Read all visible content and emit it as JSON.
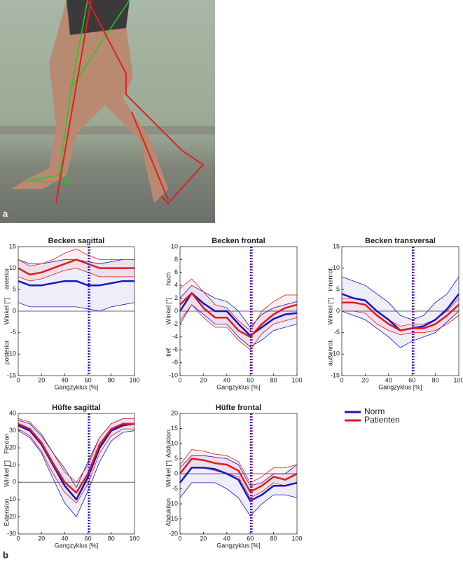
{
  "panel_labels": {
    "a": "a",
    "b": "b"
  },
  "chart_data": [
    {
      "type": "line",
      "title": "Becken sagittal",
      "xlabel": "Gangzyklus [%]",
      "ylabel": "Winkel [°]",
      "top_label": "anterior",
      "bottom_label": "posterior",
      "x": [
        0,
        10,
        20,
        30,
        40,
        50,
        60,
        70,
        80,
        90,
        100
      ],
      "xlim": [
        0,
        100
      ],
      "xticks": [
        0,
        20,
        40,
        60,
        80,
        100
      ],
      "ylim": [
        -15,
        15
      ],
      "yticks": [
        -15,
        -10,
        -5,
        0,
        5,
        10,
        15
      ],
      "zero_line": true,
      "series": [
        {
          "name": "Norm",
          "color": "#1414c8",
          "toe_off": 60.5,
          "values": [
            7,
            6,
            6,
            6.5,
            7,
            7,
            6,
            6,
            6.5,
            7,
            7
          ],
          "lower": [
            2,
            1,
            1,
            1,
            1,
            1,
            0.5,
            0,
            1,
            1.5,
            2
          ],
          "upper": [
            12,
            11,
            11,
            11.5,
            12,
            12,
            11.5,
            11,
            11.5,
            12,
            12
          ]
        },
        {
          "name": "Patienten",
          "color": "#e31a1a",
          "toe_off": 61.5,
          "values": [
            10,
            8.5,
            9,
            10,
            11,
            12,
            11,
            10,
            10,
            10,
            10
          ],
          "lower": [
            8,
            7,
            7.5,
            8.5,
            9.5,
            10,
            9,
            8,
            8,
            8,
            8
          ],
          "upper": [
            12,
            10.5,
            11,
            12,
            13.5,
            14.5,
            13,
            12,
            12,
            12,
            12
          ]
        }
      ]
    },
    {
      "type": "line",
      "title": "Becken frontal",
      "xlabel": "Gangzyklus [%]",
      "ylabel": "Winkel [°]",
      "top_label": "hoch",
      "bottom_label": "tief",
      "x": [
        0,
        10,
        20,
        30,
        40,
        50,
        60,
        70,
        80,
        90,
        100
      ],
      "xlim": [
        0,
        100
      ],
      "xticks": [
        0,
        20,
        40,
        60,
        80,
        100
      ],
      "ylim": [
        -10,
        10
      ],
      "yticks": [
        -10,
        -8,
        -6,
        -4,
        -2,
        0,
        2,
        4,
        6,
        8,
        10
      ],
      "zero_line": true,
      "series": [
        {
          "name": "Norm",
          "color": "#1414c8",
          "toe_off": 60.5,
          "values": [
            0,
            2.8,
            1.2,
            0,
            0,
            -2,
            -3.8,
            -2.5,
            -1.2,
            -0.5,
            -0.3
          ],
          "lower": [
            -2,
            1,
            -0.5,
            -2,
            -2,
            -4,
            -5.5,
            -4.5,
            -3,
            -2.5,
            -2
          ],
          "upper": [
            2,
            4,
            3,
            2,
            1.5,
            0,
            -2.5,
            -0.5,
            0.5,
            1,
            1.5
          ]
        },
        {
          "name": "Patienten",
          "color": "#e31a1a",
          "toe_off": 61.5,
          "values": [
            1,
            2.8,
            0.5,
            -1,
            -1,
            -3,
            -4,
            -2,
            -0.5,
            0.5,
            1
          ],
          "lower": [
            -1.5,
            1,
            -1,
            -2.5,
            -2.5,
            -4.5,
            -6,
            -3.5,
            -2,
            -1.5,
            -1
          ],
          "upper": [
            3.5,
            5,
            3,
            1,
            0.5,
            -1.5,
            -3,
            0,
            1.5,
            2.5,
            2.5
          ]
        }
      ]
    },
    {
      "type": "line",
      "title": "Becken transversal",
      "xlabel": "Gangzyklus [%]",
      "ylabel": "Winkel [°]",
      "top_label": "innenrot.",
      "bottom_label": "außenrot.",
      "x": [
        0,
        10,
        20,
        30,
        40,
        50,
        60,
        70,
        80,
        90,
        100
      ],
      "xlim": [
        0,
        100
      ],
      "xticks": [
        0,
        20,
        40,
        60,
        80,
        100
      ],
      "ylim": [
        -15,
        15
      ],
      "yticks": [
        -15,
        -10,
        -5,
        0,
        5,
        10,
        15
      ],
      "zero_line": true,
      "series": [
        {
          "name": "Norm",
          "color": "#1414c8",
          "toe_off": 60.5,
          "values": [
            4,
            3,
            2.5,
            0,
            -2,
            -4.5,
            -4,
            -3.5,
            -2,
            0.5,
            4
          ],
          "lower": [
            0,
            -1,
            -2,
            -4,
            -6,
            -8.5,
            -7,
            -6,
            -5,
            -2.5,
            0
          ],
          "upper": [
            8,
            7,
            6,
            4,
            2,
            -1,
            -2,
            -1,
            2,
            4,
            8
          ]
        },
        {
          "name": "Patienten",
          "color": "#e31a1a",
          "toe_off": 61.5,
          "values": [
            2,
            2,
            1.5,
            -1,
            -3,
            -4.5,
            -4,
            -4,
            -3,
            -1,
            1.5
          ],
          "lower": [
            0,
            0,
            -0.5,
            -3,
            -4.5,
            -5.5,
            -5,
            -5,
            -4.5,
            -3,
            -1
          ],
          "upper": [
            3,
            3,
            2.5,
            0,
            -2,
            -3.5,
            -3,
            -3,
            -2,
            0,
            3
          ]
        }
      ]
    },
    {
      "type": "line",
      "title": "Hüfte sagittal",
      "xlabel": "Gangzyklus [%]",
      "ylabel": "Winkel [°]",
      "top_label": "Flexion",
      "bottom_label": "Extension",
      "x": [
        0,
        10,
        20,
        30,
        40,
        50,
        60,
        70,
        80,
        90,
        100
      ],
      "xlim": [
        0,
        100
      ],
      "xticks": [
        0,
        20,
        40,
        60,
        80,
        100
      ],
      "ylim": [
        -30,
        40
      ],
      "yticks": [
        -30,
        -20,
        -10,
        0,
        10,
        20,
        30,
        40
      ],
      "zero_line": true,
      "series": [
        {
          "name": "Norm",
          "color": "#1414c8",
          "toe_off": 60.5,
          "values": [
            33,
            30,
            22,
            10,
            -2,
            -10,
            3,
            20,
            30,
            33,
            34
          ],
          "lower": [
            30,
            26,
            17,
            2,
            -12,
            -20,
            -5,
            12,
            24,
            29,
            30
          ],
          "upper": [
            36,
            34,
            27,
            17,
            8,
            -3,
            12,
            26,
            34,
            37,
            37
          ]
        },
        {
          "name": "Patienten",
          "color": "#e31a1a",
          "toe_off": 61.5,
          "values": [
            34,
            31,
            23,
            11,
            0,
            -6,
            5,
            22,
            31,
            34,
            34
          ],
          "lower": [
            31,
            27,
            18,
            5,
            -6,
            -12,
            -1,
            17,
            27,
            31,
            31
          ],
          "upper": [
            37,
            35,
            28,
            17,
            6,
            0,
            10,
            26,
            34,
            37,
            37
          ]
        }
      ]
    },
    {
      "type": "line",
      "title": "Hüfte frontal",
      "xlabel": "Gangzyklus [%]",
      "ylabel": "Winkel [°]",
      "top_label": "Adduktion",
      "bottom_label": "Abduktion",
      "x": [
        0,
        10,
        20,
        30,
        40,
        50,
        60,
        70,
        80,
        90,
        100
      ],
      "xlim": [
        0,
        100
      ],
      "xticks": [
        0,
        20,
        40,
        60,
        80,
        100
      ],
      "ylim": [
        -20,
        20
      ],
      "yticks": [
        -20,
        -15,
        -10,
        -5,
        0,
        5,
        10,
        15,
        20
      ],
      "zero_line": true,
      "series": [
        {
          "name": "Norm",
          "color": "#1414c8",
          "toe_off": 60.5,
          "values": [
            -3,
            2,
            2,
            1.5,
            0,
            -2,
            -9,
            -7,
            -4,
            -4,
            -3
          ],
          "lower": [
            -8,
            -3,
            -3,
            -3,
            -5,
            -8,
            -14,
            -10,
            -7,
            -7,
            -8
          ],
          "upper": [
            2,
            6,
            6,
            5.5,
            5,
            3,
            -4,
            -3,
            0,
            0,
            3
          ]
        },
        {
          "name": "Patienten",
          "color": "#e31a1a",
          "toe_off": 61.5,
          "values": [
            0,
            5,
            4.5,
            3.5,
            3,
            1,
            -6,
            -4,
            -1,
            -2,
            0
          ],
          "lower": [
            -3,
            2,
            2,
            1,
            0,
            -1,
            -8,
            -6,
            -3,
            -4,
            -3
          ],
          "upper": [
            3,
            8,
            7.5,
            6.5,
            6,
            4,
            -3,
            -1,
            2,
            2,
            3
          ]
        }
      ]
    }
  ]
}
